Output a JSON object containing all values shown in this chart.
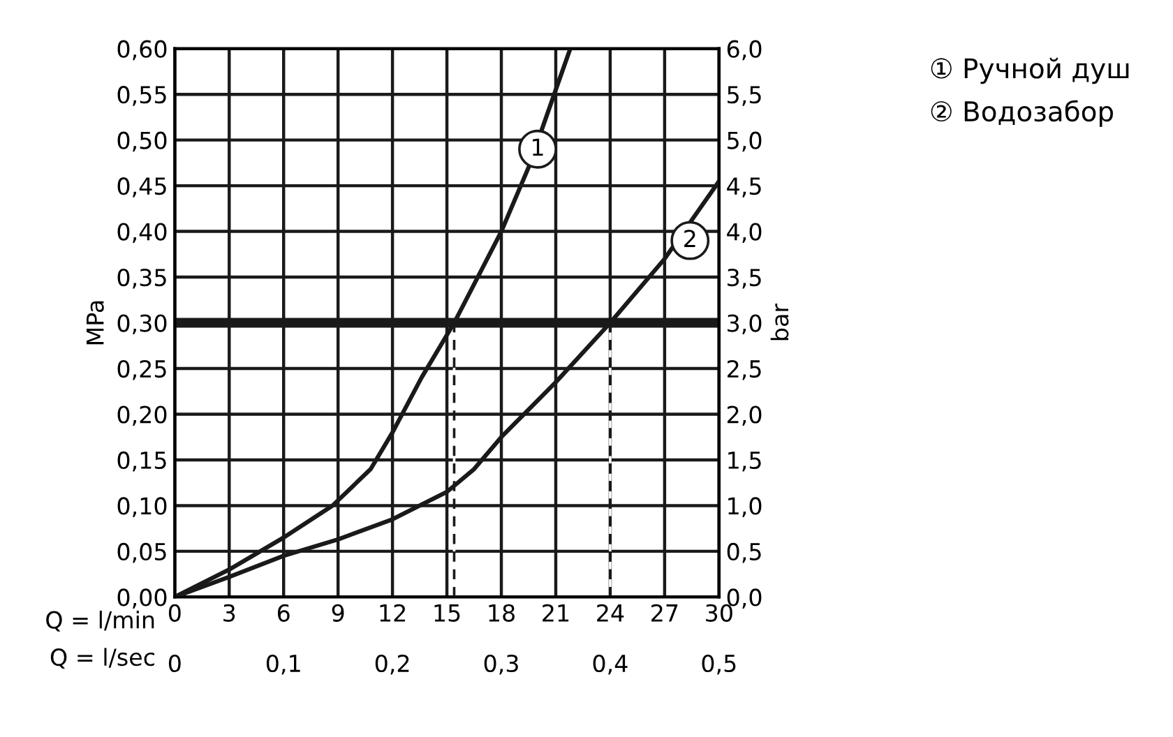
{
  "chart_data": {
    "type": "line",
    "xlabel": "Q = l/min",
    "x2label": "Q = l/sec",
    "ylabel": "MPa",
    "y2label": "bar",
    "xlim": [
      0,
      30
    ],
    "xticks": [
      0,
      3,
      6,
      9,
      12,
      15,
      18,
      21,
      24,
      27,
      30
    ],
    "x2lim": [
      0,
      0.5
    ],
    "x2ticks": [
      {
        "value": 0,
        "label": "0"
      },
      {
        "value": 0.1,
        "label": "0,1"
      },
      {
        "value": 0.2,
        "label": "0,2"
      },
      {
        "value": 0.3,
        "label": "0,3"
      },
      {
        "value": 0.4,
        "label": "0,4"
      },
      {
        "value": 0.5,
        "label": "0,5"
      }
    ],
    "ylim": [
      0,
      0.6
    ],
    "yticks": [
      {
        "value": 0,
        "label": "0,00"
      },
      {
        "value": 0.05,
        "label": "0,05"
      },
      {
        "value": 0.1,
        "label": "0,10"
      },
      {
        "value": 0.15,
        "label": "0,15"
      },
      {
        "value": 0.2,
        "label": "0,20"
      },
      {
        "value": 0.25,
        "label": "0,25"
      },
      {
        "value": 0.3,
        "label": "0,30"
      },
      {
        "value": 0.35,
        "label": "0,35"
      },
      {
        "value": 0.4,
        "label": "0,40"
      },
      {
        "value": 0.45,
        "label": "0,45"
      },
      {
        "value": 0.5,
        "label": "0,50"
      },
      {
        "value": 0.55,
        "label": "0,55"
      },
      {
        "value": 0.6,
        "label": "0,60"
      }
    ],
    "y2lim": [
      0,
      6
    ],
    "y2ticks": [
      {
        "value": 0,
        "label": "0,0"
      },
      {
        "value": 0.5,
        "label": "0,5"
      },
      {
        "value": 1,
        "label": "1,0"
      },
      {
        "value": 1.5,
        "label": "1,5"
      },
      {
        "value": 2,
        "label": "2,0"
      },
      {
        "value": 2.5,
        "label": "2,5"
      },
      {
        "value": 3,
        "label": "3,0"
      },
      {
        "value": 3.5,
        "label": "3,5"
      },
      {
        "value": 4,
        "label": "4,0"
      },
      {
        "value": 4.5,
        "label": "4,5"
      },
      {
        "value": 5,
        "label": "5,0"
      },
      {
        "value": 5.5,
        "label": "5,5"
      },
      {
        "value": 6,
        "label": "6,0"
      }
    ],
    "grid": true,
    "legend": "top right",
    "marker": "none",
    "line_style": "solid",
    "series": [
      {
        "name": "① Ручной душ",
        "color": "#1a1a1a",
        "x": [
          0,
          3,
          6,
          8.7,
          10.8,
          12,
          13.6,
          15.4,
          18,
          19.5,
          21,
          21.8
        ],
        "values": [
          0,
          0.03,
          0.065,
          0.1,
          0.14,
          0.18,
          0.24,
          0.3,
          0.4,
          0.47,
          0.555,
          0.6
        ]
      },
      {
        "name": "② Водозабор",
        "color": "#1a1a1a",
        "x": [
          0,
          3,
          6,
          9,
          12,
          15,
          16.5,
          18,
          21,
          24,
          27,
          30
        ],
        "values": [
          0,
          0.022,
          0.045,
          0.063,
          0.085,
          0.115,
          0.14,
          0.175,
          0.235,
          0.3,
          0.37,
          0.455
        ]
      },
      {
        "color": "#1a1a1a",
        "line_style": "dashed",
        "x": [
          15.4,
          15.4
        ],
        "values": [
          0,
          0.3
        ]
      },
      {
        "color": "#1a1a1a",
        "line_style": "dashed",
        "x": [
          24,
          24
        ],
        "values": [
          0,
          0.3
        ]
      }
    ],
    "ref_lines": [
      {
        "axis": "y",
        "value": 0.3,
        "color": "#1a1a1a"
      }
    ],
    "annotations": [
      {
        "text": "1",
        "x": 20,
        "y": 0.49
      },
      {
        "text": "2",
        "x": 28.4,
        "y": 0.39
      }
    ]
  }
}
